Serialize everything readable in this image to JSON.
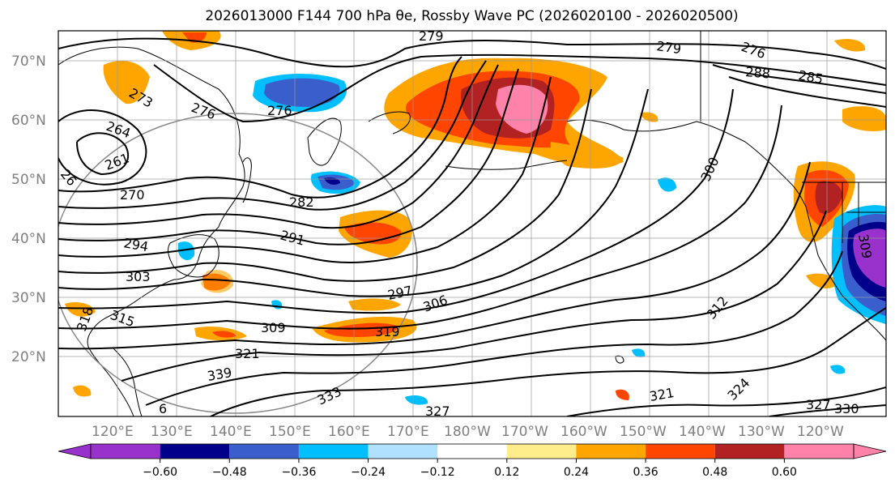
{
  "title": "2026013000 F144 700 hPa θe, Rossby Wave PC (2026020100 - 2026020500)",
  "latitude_labels": [
    "70°N",
    "60°N",
    "50°N",
    "40°N",
    "30°N",
    "20°N"
  ],
  "longitude_labels": [
    "120°E",
    "130°E",
    "140°E",
    "150°E",
    "160°E",
    "170°E",
    "180°W",
    "170°W",
    "160°W",
    "150°W",
    "140°W",
    "130°W",
    "120°W"
  ],
  "contour_labels": [
    "279",
    "276",
    "273",
    "276",
    "264",
    "261",
    "26",
    "270",
    "282",
    "276",
    "279",
    "288",
    "285",
    "300",
    "291",
    "294",
    "303",
    "297",
    "306",
    "315",
    "318",
    "309",
    "312",
    "319",
    "321",
    "339",
    "333",
    "327",
    "321",
    "324",
    "327",
    "330",
    "309",
    "6"
  ],
  "colorbar": {
    "ticks": [
      "−0.60",
      "−0.48",
      "−0.36",
      "−0.24",
      "−0.12",
      "0.12",
      "0.24",
      "0.36",
      "0.48",
      "0.60"
    ],
    "colors": [
      "#9932cc",
      "#00008b",
      "#3a5fcd",
      "#00bfff",
      "#b0e2ff",
      "#ffffff",
      "#ffec8b",
      "#ffa500",
      "#ff4500",
      "#b22222",
      "#ff82ab",
      "#ff82ab"
    ]
  },
  "shading_colors": {
    "pos_light": "#ffa500",
    "pos_mid": "#ff4500",
    "pos_dark": "#b22222",
    "pos_max": "#ff82ab",
    "neg_light": "#00bfff",
    "neg_mid": "#3a5fcd",
    "neg_dark": "#00008b",
    "neg_max": "#9932cc"
  }
}
